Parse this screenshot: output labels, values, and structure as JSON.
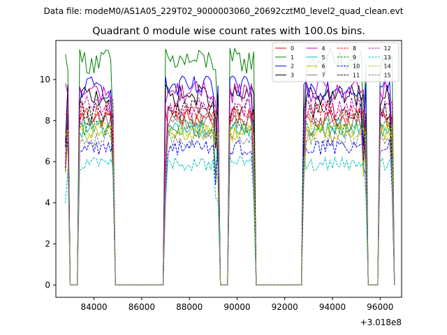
{
  "chart_data": {
    "type": "line",
    "suptitle": "Data file: modeM0/AS1A05_229T02_9000003060_20692cztM0_level2_quad_clean.evt",
    "title": "Quadrant 0 module wise count rates with 100.0s bins.",
    "xlabel": "",
    "ylabel": "",
    "x_offset_label": "+3.018e8",
    "xlim": [
      82400,
      96900
    ],
    "ylim": [
      -0.6,
      11.9
    ],
    "x_ticks": [
      84000,
      86000,
      88000,
      90000,
      92000,
      94000,
      96000
    ],
    "x_tick_labels": [
      "84000",
      "86000",
      "88000",
      "90000",
      "92000",
      "94000",
      "96000"
    ],
    "y_ticks": [
      0,
      2,
      4,
      6,
      8,
      10
    ],
    "y_tick_labels": [
      "0",
      "2",
      "4",
      "6",
      "8",
      "10"
    ],
    "legend_position": "upper-right",
    "legend_columns": 4,
    "bin_seconds": 100,
    "segments": [
      {
        "x_start": 82800,
        "x_end": 84900,
        "gap_start": 83000,
        "gap_end": 83400
      },
      {
        "x_start": 87000,
        "x_end": 89200
      },
      {
        "x_start": 89200,
        "x_end": 90800,
        "gap_start": 89300,
        "gap_end": 89700
      },
      {
        "x_start": 92800,
        "x_end": 95400
      },
      {
        "x_start": 95400,
        "x_end": 96600,
        "gap_start": 95500,
        "gap_end": 96000
      }
    ],
    "series": [
      {
        "name": "0",
        "level": 8.1,
        "color": "#ff0000",
        "style": "solid"
      },
      {
        "name": "1",
        "level": 10.9,
        "color": "#008000",
        "style": "solid"
      },
      {
        "name": "2",
        "level": 9.6,
        "color": "#0000ff",
        "style": "solid"
      },
      {
        "name": "3",
        "level": 9.2,
        "color": "#000000",
        "style": "solid"
      },
      {
        "name": "4",
        "level": 9.4,
        "color": "#bf00bf",
        "style": "solid"
      },
      {
        "name": "5",
        "level": 7.6,
        "color": "#00bfbf",
        "style": "solid"
      },
      {
        "name": "6",
        "level": 7.4,
        "color": "#bfbf00",
        "style": "solid"
      },
      {
        "name": "7",
        "level": 8.0,
        "color": "#808080",
        "style": "solid"
      },
      {
        "name": "8",
        "level": 8.4,
        "color": "#ff0000",
        "style": "dashed"
      },
      {
        "name": "9",
        "level": 7.7,
        "color": "#008000",
        "style": "dashed"
      },
      {
        "name": "10",
        "level": 6.7,
        "color": "#0000ff",
        "style": "dashed"
      },
      {
        "name": "11",
        "level": 8.5,
        "color": "#000000",
        "style": "dashed"
      },
      {
        "name": "12",
        "level": 8.7,
        "color": "#bf00bf",
        "style": "dashed"
      },
      {
        "name": "13",
        "level": 5.9,
        "color": "#00bfbf",
        "style": "dashed"
      },
      {
        "name": "14",
        "level": 7.5,
        "color": "#bfbf00",
        "style": "dashed"
      },
      {
        "name": "15",
        "level": 7.1,
        "color": "#808080",
        "style": "dashed"
      }
    ]
  }
}
